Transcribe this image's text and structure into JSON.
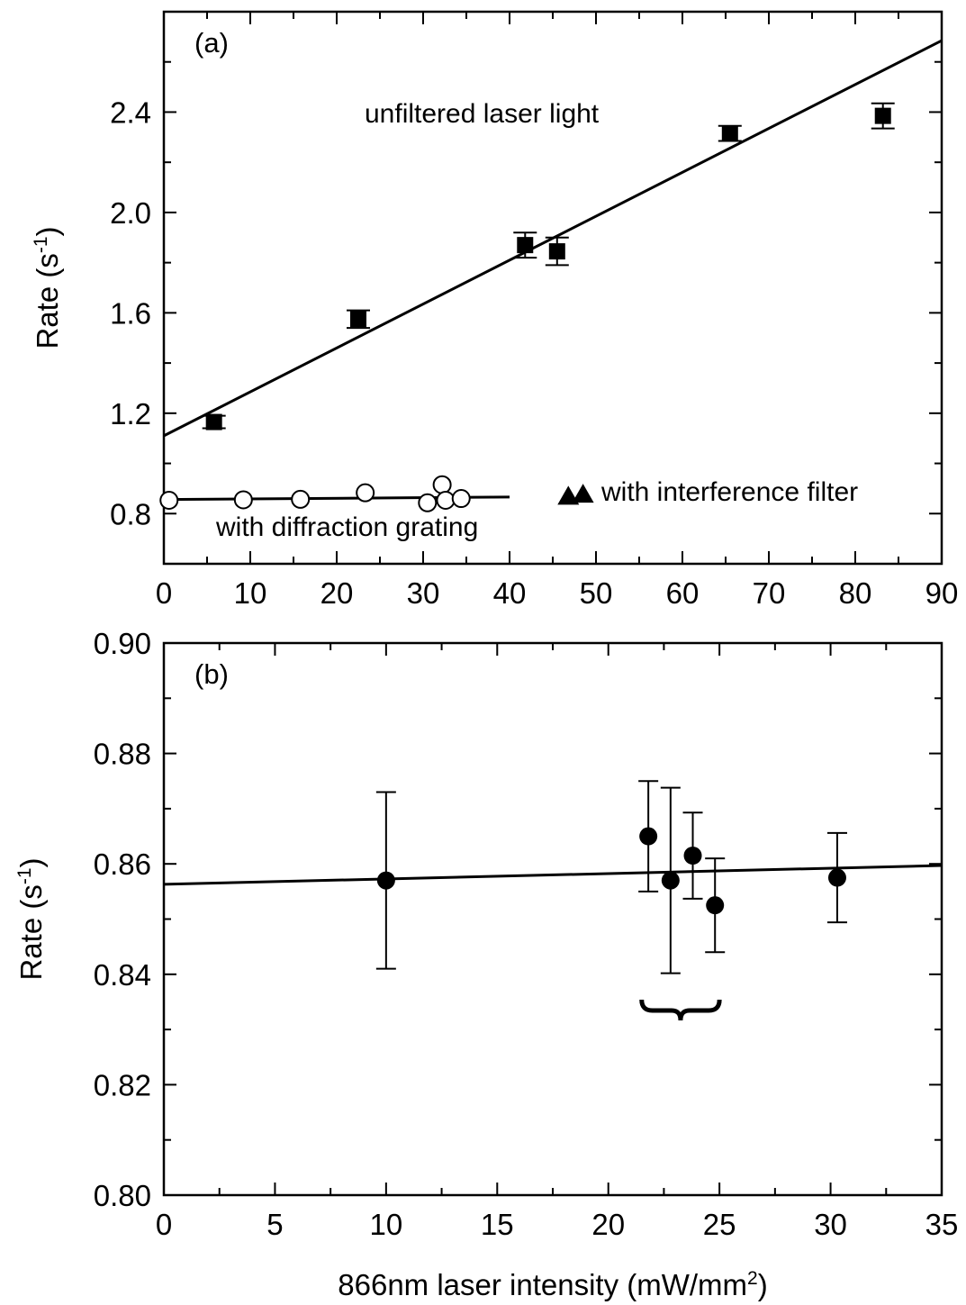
{
  "chart_data": [
    {
      "panel_label": "(a)",
      "type": "scatter",
      "xlim": [
        0,
        90
      ],
      "ylim": [
        0.6,
        2.8
      ],
      "xticks": [
        0,
        10,
        20,
        30,
        40,
        50,
        60,
        70,
        80,
        90
      ],
      "yticks": [
        0.8,
        1.2,
        1.6,
        2.0,
        2.4
      ],
      "ylabel": "Rate (s",
      "ylabel_sup": "-1",
      "ylabel_close": ")",
      "annotations": {
        "unfiltered": "unfiltered laser light",
        "grating": "with diffraction grating",
        "filter": "with interference filter"
      },
      "series": [
        {
          "marker": "filled-square",
          "points": [
            {
              "x": 5.8,
              "y": 1.165,
              "err": 0.025
            },
            {
              "x": 22.5,
              "y": 1.575,
              "err": 0.035
            },
            {
              "x": 41.8,
              "y": 1.87,
              "err": 0.05
            },
            {
              "x": 45.5,
              "y": 1.845,
              "err": 0.055
            },
            {
              "x": 65.5,
              "y": 2.315,
              "err": 0.03
            },
            {
              "x": 83.2,
              "y": 2.385,
              "err": 0.05
            }
          ],
          "fit": {
            "x": [
              0,
              90
            ],
            "y": [
              1.11,
              2.685
            ]
          }
        },
        {
          "marker": "open-circle",
          "points": [
            {
              "x": 0.6,
              "y": 0.853
            },
            {
              "x": 9.2,
              "y": 0.855
            },
            {
              "x": 15.8,
              "y": 0.857
            },
            {
              "x": 23.3,
              "y": 0.883
            },
            {
              "x": 30.5,
              "y": 0.843
            },
            {
              "x": 32.2,
              "y": 0.915
            },
            {
              "x": 32.6,
              "y": 0.853
            },
            {
              "x": 34.4,
              "y": 0.86
            }
          ],
          "fit": {
            "x": [
              0,
              40
            ],
            "y": [
              0.856,
              0.866
            ]
          }
        },
        {
          "marker": "filled-triangle",
          "points": [
            {
              "x": 46.8,
              "y": 0.868
            },
            {
              "x": 48.5,
              "y": 0.876
            }
          ]
        }
      ]
    },
    {
      "panel_label": "(b)",
      "type": "scatter",
      "xlim": [
        0,
        35
      ],
      "ylim": [
        0.8,
        0.9
      ],
      "xticks": [
        0,
        5,
        10,
        15,
        20,
        25,
        30,
        35
      ],
      "yticks": [
        0.8,
        0.82,
        0.84,
        0.86,
        0.88,
        0.9
      ],
      "ylabel": "Rate (s",
      "ylabel_sup": "-1",
      "ylabel_close": ")",
      "xlabel": "866nm laser intensity (mW/mm",
      "xlabel_sup": "2",
      "xlabel_close": ")",
      "series": [
        {
          "marker": "filled-circle",
          "points": [
            {
              "x": 10.0,
              "y": 0.857,
              "err": 0.016
            },
            {
              "x": 21.8,
              "y": 0.865,
              "err": 0.01
            },
            {
              "x": 22.8,
              "y": 0.857,
              "err": 0.0168
            },
            {
              "x": 23.8,
              "y": 0.8615,
              "err": 0.0078
            },
            {
              "x": 24.8,
              "y": 0.8525,
              "err": 0.0085
            },
            {
              "x": 30.3,
              "y": 0.8575,
              "err": 0.0081
            }
          ],
          "fit": {
            "x": [
              0,
              35
            ],
            "y": [
              0.8563,
              0.8597
            ]
          }
        }
      ],
      "brace": {
        "x_from": 21.5,
        "x_to": 25.0
      }
    }
  ]
}
